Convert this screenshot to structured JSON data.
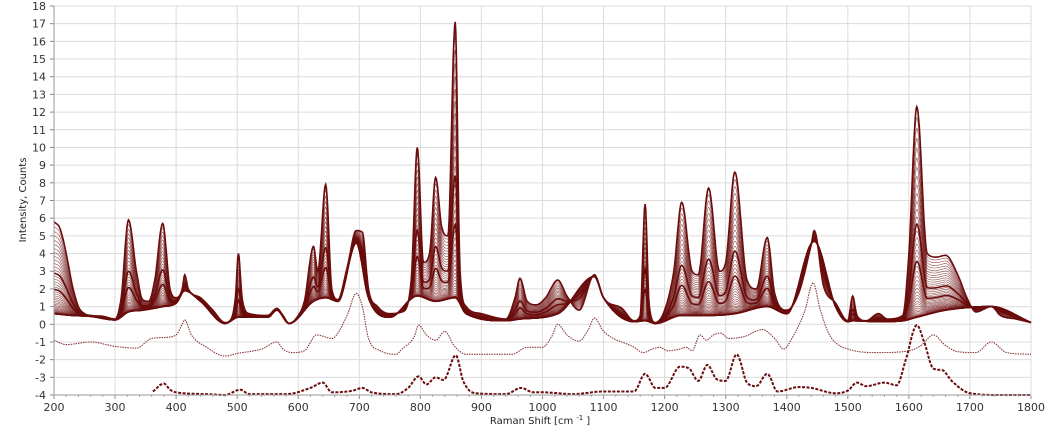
{
  "chart_data": {
    "type": "line",
    "title": "",
    "xlabel": "Raman Shift [cm",
    "xlabel_sup": "-1",
    "xlabel_end": "]",
    "ylabel": "Intensity, Counts",
    "xlim": [
      200,
      1800
    ],
    "ylim": [
      -4,
      18
    ],
    "x_ticks": [
      200,
      300,
      400,
      500,
      600,
      700,
      800,
      900,
      1000,
      1100,
      1200,
      1300,
      1400,
      1500,
      1600,
      1700,
      1800
    ],
    "y_ticks": [
      -4,
      -3,
      -2,
      -1,
      0,
      1,
      2,
      3,
      4,
      5,
      6,
      7,
      8,
      9,
      10,
      11,
      12,
      13,
      14,
      15,
      16,
      17,
      18
    ],
    "grid": true,
    "legend": "none",
    "colors": {
      "series": "#6b0d0d",
      "reference_thin": "#8a3a3a",
      "grid": "#dcdcdc"
    },
    "family_envelope": {
      "upper": [
        [
          200,
          5.8
        ],
        [
          210,
          5.4
        ],
        [
          220,
          4
        ],
        [
          230,
          2.2
        ],
        [
          240,
          1.0
        ],
        [
          250,
          0.6
        ],
        [
          260,
          0.5
        ],
        [
          280,
          0.45
        ],
        [
          300,
          0.3
        ],
        [
          310,
          1.5
        ],
        [
          322,
          5.9
        ],
        [
          335,
          3
        ],
        [
          345,
          1.4
        ],
        [
          355,
          1.3
        ],
        [
          365,
          2.5
        ],
        [
          378,
          5.7
        ],
        [
          390,
          2
        ],
        [
          400,
          1.5
        ],
        [
          410,
          2
        ],
        [
          414,
          2.8
        ],
        [
          420,
          2.0
        ],
        [
          440,
          1.5
        ],
        [
          460,
          0.8
        ],
        [
          480,
          0.1
        ],
        [
          490,
          0.3
        ],
        [
          497,
          1.5
        ],
        [
          502,
          4.0
        ],
        [
          508,
          1.5
        ],
        [
          520,
          0.6
        ],
        [
          550,
          0.5
        ],
        [
          565,
          0.9
        ],
        [
          575,
          0.5
        ],
        [
          585,
          0.05
        ],
        [
          600,
          0.5
        ],
        [
          610,
          1.3
        ],
        [
          625,
          4.4
        ],
        [
          632,
          3.0
        ],
        [
          645,
          7.9
        ],
        [
          655,
          2.0
        ],
        [
          665,
          1.4
        ],
        [
          680,
          3.2
        ],
        [
          695,
          5.3
        ],
        [
          705,
          5.2
        ],
        [
          715,
          2.0
        ],
        [
          730,
          1.0
        ],
        [
          750,
          0.6
        ],
        [
          770,
          0.7
        ],
        [
          785,
          2.5
        ],
        [
          795,
          10.0
        ],
        [
          805,
          3.5
        ],
        [
          815,
          4
        ],
        [
          825,
          8.3
        ],
        [
          835,
          5.5
        ],
        [
          845,
          5
        ],
        [
          857,
          17.1
        ],
        [
          865,
          3
        ],
        [
          875,
          1.0
        ],
        [
          900,
          0.6
        ],
        [
          940,
          0.3
        ],
        [
          955,
          1.5
        ],
        [
          963,
          2.6
        ],
        [
          975,
          1.3
        ],
        [
          990,
          1.1
        ],
        [
          1005,
          1.5
        ],
        [
          1025,
          2.5
        ],
        [
          1040,
          1.6
        ],
        [
          1060,
          0.8
        ],
        [
          1085,
          2.8
        ],
        [
          1100,
          1.5
        ],
        [
          1130,
          0.9
        ],
        [
          1150,
          0.2
        ],
        [
          1160,
          0.5
        ],
        [
          1168,
          6.8
        ],
        [
          1175,
          1.0
        ],
        [
          1185,
          0.1
        ],
        [
          1200,
          0.8
        ],
        [
          1215,
          3
        ],
        [
          1228,
          6.9
        ],
        [
          1245,
          3
        ],
        [
          1255,
          2.8
        ],
        [
          1272,
          7.7
        ],
        [
          1290,
          3
        ],
        [
          1300,
          3.5
        ],
        [
          1315,
          8.6
        ],
        [
          1335,
          2.5
        ],
        [
          1350,
          2.0
        ],
        [
          1368,
          4.9
        ],
        [
          1380,
          1.8
        ],
        [
          1400,
          0.8
        ],
        [
          1420,
          1.8
        ],
        [
          1440,
          4.5
        ],
        [
          1445,
          5.3
        ],
        [
          1460,
          2.2
        ],
        [
          1480,
          1.2
        ],
        [
          1500,
          0.2
        ],
        [
          1508,
          1.6
        ],
        [
          1515,
          0.5
        ],
        [
          1530,
          0.2
        ],
        [
          1550,
          0.6
        ],
        [
          1565,
          0.3
        ],
        [
          1590,
          0.5
        ],
        [
          1600,
          4
        ],
        [
          1613,
          12.3
        ],
        [
          1630,
          4
        ],
        [
          1645,
          3.8
        ],
        [
          1660,
          3.9
        ],
        [
          1680,
          2.8
        ],
        [
          1695,
          1.5
        ],
        [
          1710,
          0.7
        ],
        [
          1735,
          1.0
        ],
        [
          1750,
          0.5
        ],
        [
          1775,
          0.3
        ],
        [
          1800,
          0.1
        ]
      ],
      "lower": [
        [
          200,
          0.6
        ],
        [
          230,
          0.5
        ],
        [
          260,
          0.45
        ],
        [
          300,
          0.25
        ],
        [
          322,
          0.7
        ],
        [
          345,
          0.8
        ],
        [
          378,
          1.0
        ],
        [
          400,
          1.2
        ],
        [
          414,
          1.9
        ],
        [
          440,
          1.3
        ],
        [
          480,
          0.05
        ],
        [
          502,
          0.4
        ],
        [
          550,
          0.4
        ],
        [
          565,
          0.8
        ],
        [
          585,
          0.05
        ],
        [
          625,
          1.3
        ],
        [
          645,
          1.5
        ],
        [
          665,
          1.3
        ],
        [
          695,
          4.6
        ],
        [
          715,
          1.5
        ],
        [
          750,
          0.4
        ],
        [
          795,
          1.6
        ],
        [
          825,
          1.3
        ],
        [
          857,
          1.5
        ],
        [
          875,
          0.6
        ],
        [
          940,
          0.2
        ],
        [
          963,
          0.3
        ],
        [
          1025,
          0.6
        ],
        [
          1085,
          2.7
        ],
        [
          1100,
          1.5
        ],
        [
          1150,
          0.15
        ],
        [
          1168,
          0.2
        ],
        [
          1185,
          0.05
        ],
        [
          1228,
          0.5
        ],
        [
          1272,
          0.5
        ],
        [
          1315,
          0.6
        ],
        [
          1368,
          1.0
        ],
        [
          1400,
          0.6
        ],
        [
          1445,
          4.7
        ],
        [
          1480,
          1.0
        ],
        [
          1500,
          0.15
        ],
        [
          1508,
          0.2
        ],
        [
          1550,
          0.15
        ],
        [
          1590,
          0.2
        ],
        [
          1613,
          0.4
        ],
        [
          1660,
          0.8
        ],
        [
          1735,
          1.0
        ],
        [
          1800,
          0.1
        ]
      ]
    },
    "series": [
      {
        "style": "dotted-thin",
        "points": [
          [
            200,
            -0.9
          ],
          [
            220,
            -1.15
          ],
          [
            260,
            -1.0
          ],
          [
            300,
            -1.25
          ],
          [
            335,
            -1.35
          ],
          [
            360,
            -0.8
          ],
          [
            380,
            -0.75
          ],
          [
            400,
            -0.6
          ],
          [
            410,
            0
          ],
          [
            414,
            0.25
          ],
          [
            425,
            -0.6
          ],
          [
            450,
            -1.3
          ],
          [
            480,
            -1.8
          ],
          [
            500,
            -1.65
          ],
          [
            540,
            -1.4
          ],
          [
            565,
            -1.0
          ],
          [
            575,
            -1.4
          ],
          [
            590,
            -1.6
          ],
          [
            610,
            -1.5
          ],
          [
            630,
            -0.6
          ],
          [
            655,
            -0.8
          ],
          [
            680,
            0.5
          ],
          [
            695,
            1.75
          ],
          [
            705,
            1.0
          ],
          [
            715,
            -0.8
          ],
          [
            735,
            -1.5
          ],
          [
            760,
            -1.7
          ],
          [
            770,
            -1.4
          ],
          [
            790,
            -0.7
          ],
          [
            797,
            -0.05
          ],
          [
            810,
            -0.6
          ],
          [
            825,
            -0.9
          ],
          [
            840,
            -0.4
          ],
          [
            855,
            -1.2
          ],
          [
            875,
            -1.7
          ],
          [
            950,
            -1.7
          ],
          [
            975,
            -1.3
          ],
          [
            1000,
            -1.3
          ],
          [
            1015,
            -0.7
          ],
          [
            1025,
            0.0
          ],
          [
            1040,
            -0.6
          ],
          [
            1060,
            -0.95
          ],
          [
            1075,
            -0.3
          ],
          [
            1085,
            0.35
          ],
          [
            1100,
            -0.4
          ],
          [
            1150,
            -1.3
          ],
          [
            1165,
            -1.6
          ],
          [
            1180,
            -1.4
          ],
          [
            1192,
            -1.3
          ],
          [
            1205,
            -1.5
          ],
          [
            1225,
            -1.4
          ],
          [
            1235,
            -1.3
          ],
          [
            1245,
            -1.5
          ],
          [
            1258,
            -0.6
          ],
          [
            1268,
            -0.9
          ],
          [
            1280,
            -0.6
          ],
          [
            1292,
            -0.5
          ],
          [
            1305,
            -0.8
          ],
          [
            1330,
            -0.7
          ],
          [
            1360,
            -0.3
          ],
          [
            1380,
            -0.8
          ],
          [
            1395,
            -1.4
          ],
          [
            1410,
            -0.7
          ],
          [
            1430,
            0.8
          ],
          [
            1443,
            2.35
          ],
          [
            1455,
            0.8
          ],
          [
            1470,
            -0.6
          ],
          [
            1500,
            -1.4
          ],
          [
            1550,
            -1.6
          ],
          [
            1600,
            -1.5
          ],
          [
            1620,
            -1.2
          ],
          [
            1640,
            -0.6
          ],
          [
            1660,
            -1.2
          ],
          [
            1680,
            -1.55
          ],
          [
            1710,
            -1.6
          ],
          [
            1735,
            -1.0
          ],
          [
            1760,
            -1.6
          ],
          [
            1800,
            -1.7
          ]
        ]
      },
      {
        "style": "dashed-bold",
        "points": [
          [
            362,
            -3.8
          ],
          [
            380,
            -3.35
          ],
          [
            390,
            -3.7
          ],
          [
            400,
            -3.85
          ],
          [
            450,
            -3.95
          ],
          [
            480,
            -4.0
          ],
          [
            505,
            -3.7
          ],
          [
            520,
            -3.95
          ],
          [
            580,
            -3.95
          ],
          [
            620,
            -3.6
          ],
          [
            640,
            -3.3
          ],
          [
            655,
            -3.85
          ],
          [
            690,
            -3.75
          ],
          [
            705,
            -3.6
          ],
          [
            720,
            -3.85
          ],
          [
            760,
            -3.95
          ],
          [
            780,
            -3.6
          ],
          [
            797,
            -2.95
          ],
          [
            810,
            -3.4
          ],
          [
            825,
            -3.0
          ],
          [
            838,
            -3.15
          ],
          [
            858,
            -1.75
          ],
          [
            870,
            -3.2
          ],
          [
            890,
            -3.9
          ],
          [
            940,
            -3.95
          ],
          [
            965,
            -3.6
          ],
          [
            985,
            -3.85
          ],
          [
            1000,
            -3.85
          ],
          [
            1050,
            -3.95
          ],
          [
            1100,
            -3.8
          ],
          [
            1150,
            -3.8
          ],
          [
            1168,
            -2.8
          ],
          [
            1185,
            -3.6
          ],
          [
            1200,
            -3.6
          ],
          [
            1225,
            -2.4
          ],
          [
            1240,
            -2.5
          ],
          [
            1255,
            -3.2
          ],
          [
            1270,
            -2.3
          ],
          [
            1285,
            -3.1
          ],
          [
            1300,
            -3.2
          ],
          [
            1318,
            -1.7
          ],
          [
            1335,
            -3.3
          ],
          [
            1350,
            -3.5
          ],
          [
            1368,
            -2.8
          ],
          [
            1385,
            -3.8
          ],
          [
            1420,
            -3.55
          ],
          [
            1440,
            -3.6
          ],
          [
            1480,
            -3.9
          ],
          [
            1500,
            -3.75
          ],
          [
            1515,
            -3.3
          ],
          [
            1530,
            -3.5
          ],
          [
            1560,
            -3.3
          ],
          [
            1580,
            -3.45
          ],
          [
            1595,
            -2.0
          ],
          [
            1613,
            -0.05
          ],
          [
            1625,
            -1.0
          ],
          [
            1640,
            -2.5
          ],
          [
            1655,
            -2.6
          ],
          [
            1670,
            -3.2
          ],
          [
            1700,
            -3.9
          ],
          [
            1750,
            -4.0
          ],
          [
            1800,
            -4.0
          ]
        ]
      }
    ]
  }
}
